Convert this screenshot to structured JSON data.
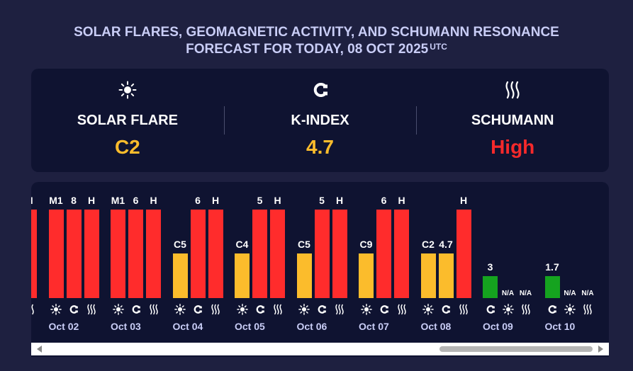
{
  "title": {
    "line1": "SOLAR FLARES, GEOMAGNETIC ACTIVITY, AND SCHUMANN RESONANCE",
    "line2": "FORECAST FOR TODAY, 08 OCT 2025",
    "sup": "UTC"
  },
  "summary": [
    {
      "icon": "sun-icon",
      "label": "SOLAR FLARE",
      "value": "C2",
      "color": "#fbbc2c"
    },
    {
      "icon": "magnet-icon",
      "label": "K-INDEX",
      "value": "4.7",
      "color": "#fbbc2c"
    },
    {
      "icon": "waves-icon",
      "label": "SCHUMANN",
      "value": "High",
      "color": "#f5292b"
    }
  ],
  "colors": {
    "red": "#ff2c2c",
    "yellow": "#fbbc2c",
    "green": "#15a31f",
    "background": "#1e2040",
    "panel": "#0f1331"
  },
  "chart_data": {
    "type": "bar",
    "series_order": [
      "solar_flare",
      "k_index",
      "schumann"
    ],
    "days": [
      {
        "date": "",
        "bars": [
          null,
          null,
          {
            "label": "H",
            "level": 1.0,
            "color": "red"
          }
        ]
      },
      {
        "date": "Oct 02",
        "bars": [
          {
            "label": "M1",
            "level": 1.0,
            "color": "red"
          },
          {
            "label": "8",
            "level": 1.0,
            "color": "red"
          },
          {
            "label": "H",
            "level": 1.0,
            "color": "red"
          }
        ]
      },
      {
        "date": "Oct 03",
        "bars": [
          {
            "label": "M1",
            "level": 1.0,
            "color": "red"
          },
          {
            "label": "6",
            "level": 1.0,
            "color": "red"
          },
          {
            "label": "H",
            "level": 1.0,
            "color": "red"
          }
        ]
      },
      {
        "date": "Oct 04",
        "bars": [
          {
            "label": "C5",
            "level": 0.5,
            "color": "yellow"
          },
          {
            "label": "6",
            "level": 1.0,
            "color": "red"
          },
          {
            "label": "H",
            "level": 1.0,
            "color": "red"
          }
        ]
      },
      {
        "date": "Oct 05",
        "bars": [
          {
            "label": "C4",
            "level": 0.5,
            "color": "yellow"
          },
          {
            "label": "5",
            "level": 1.0,
            "color": "red"
          },
          {
            "label": "H",
            "level": 1.0,
            "color": "red"
          }
        ]
      },
      {
        "date": "Oct 06",
        "bars": [
          {
            "label": "C5",
            "level": 0.5,
            "color": "yellow"
          },
          {
            "label": "5",
            "level": 1.0,
            "color": "red"
          },
          {
            "label": "H",
            "level": 1.0,
            "color": "red"
          }
        ]
      },
      {
        "date": "Oct 07",
        "bars": [
          {
            "label": "C9",
            "level": 0.5,
            "color": "yellow"
          },
          {
            "label": "6",
            "level": 1.0,
            "color": "red"
          },
          {
            "label": "H",
            "level": 1.0,
            "color": "red"
          }
        ]
      },
      {
        "date": "Oct 08",
        "bars": [
          {
            "label": "C2",
            "level": 0.5,
            "color": "yellow"
          },
          {
            "label": "4.7",
            "level": 0.5,
            "color": "yellow"
          },
          {
            "label": "H",
            "level": 1.0,
            "color": "red"
          }
        ]
      },
      {
        "date": "Oct 09",
        "order": [
          "k_index",
          "solar_flare",
          "schumann"
        ],
        "bars": [
          {
            "label": "3",
            "level": 0.25,
            "color": "green"
          },
          {
            "label": "N/A",
            "level": 0,
            "color": null
          },
          {
            "label": "N/A",
            "level": 0,
            "color": null
          }
        ]
      },
      {
        "date": "Oct 10",
        "order": [
          "k_index",
          "solar_flare",
          "schumann"
        ],
        "bars": [
          {
            "label": "1.7",
            "level": 0.25,
            "color": "green"
          },
          {
            "label": "N/A",
            "level": 0,
            "color": null
          },
          {
            "label": "N/A",
            "level": 0,
            "color": null
          }
        ]
      }
    ]
  },
  "scrollbar": {
    "position": 1.0
  }
}
